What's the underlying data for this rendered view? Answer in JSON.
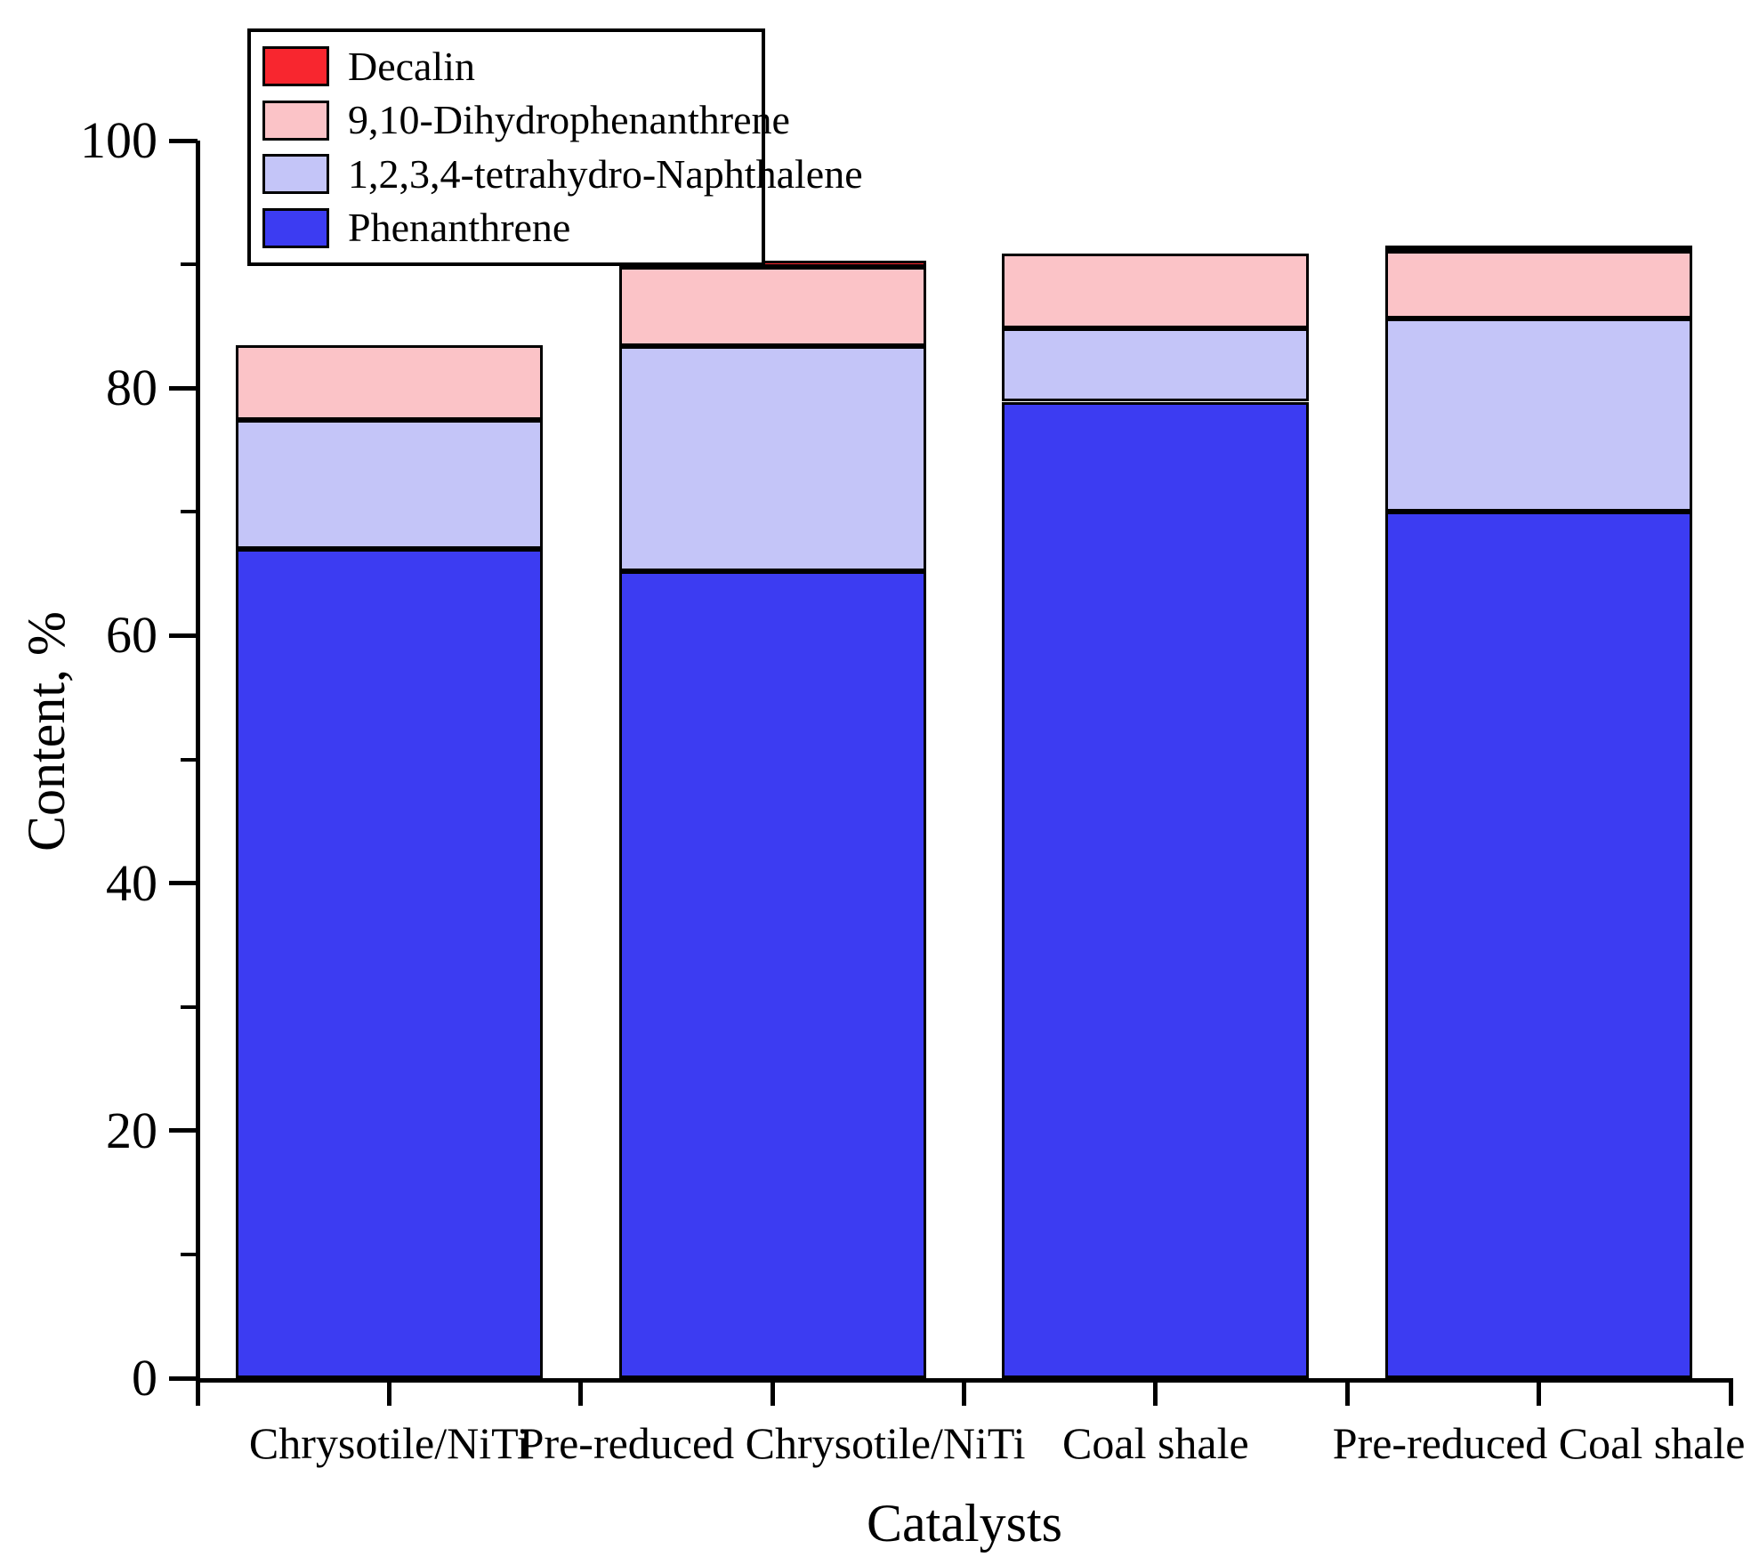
{
  "chart_data": {
    "type": "bar",
    "stacked": true,
    "title": "",
    "xlabel": "Catalysts",
    "ylabel": "Content, %",
    "ylim": [
      0,
      100
    ],
    "yticks": [
      0,
      20,
      40,
      60,
      80,
      100
    ],
    "yticks_minor": [
      10,
      30,
      50,
      70,
      90
    ],
    "grid": false,
    "categories": [
      "Chrysotile/NiTi",
      "Pre-reduced Chrysotile/NiTi",
      "Coal shale",
      "Pre-reduced Coal shale"
    ],
    "series": [
      {
        "name": "Phenanthrene",
        "color": "#3c3cf2",
        "values": [
          67.0,
          65.2,
          78.9,
          70.0
        ]
      },
      {
        "name": "1,2,3,4-tetrahydro-Naphthalene",
        "color": "#c4c5f8",
        "values": [
          10.4,
          18.2,
          5.9,
          15.6
        ]
      },
      {
        "name": "9,10-Dihydrophenanthrene",
        "color": "#fbc3c7",
        "values": [
          6.1,
          6.4,
          6.1,
          5.5
        ]
      },
      {
        "name": "Decalin",
        "color": "#f8262f",
        "values": [
          0,
          0.5,
          0,
          0.4
        ]
      }
    ],
    "legend": {
      "position": "top-left",
      "entries": [
        "Decalin",
        "9,10-Dihydrophenanthrene",
        "1,2,3,4-tetrahydro-Naphthalene",
        "Phenanthrene"
      ]
    },
    "bar_totals": [
      83.5,
      90.3,
      90.9,
      91.5
    ],
    "outline_color": "#000000"
  }
}
